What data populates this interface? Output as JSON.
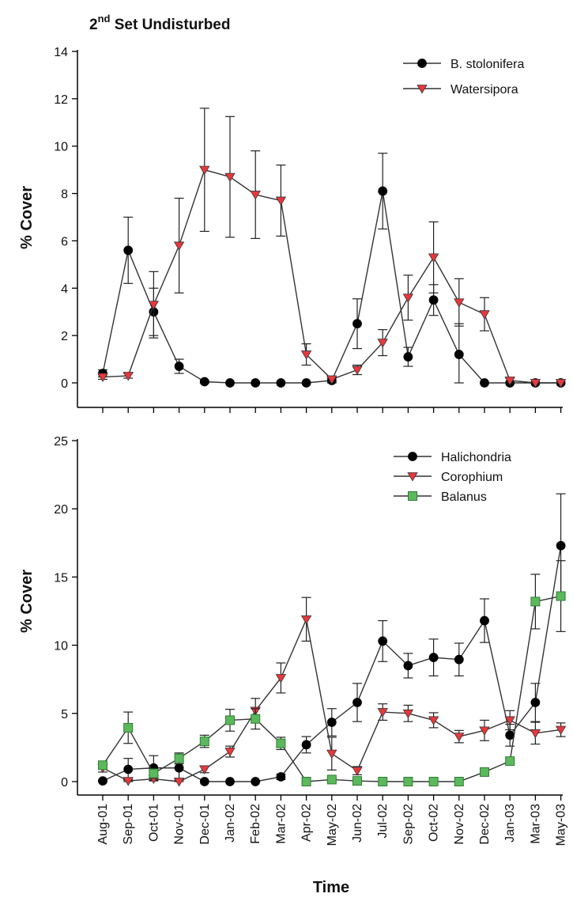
{
  "figure": {
    "title_main": "2",
    "title_sup": "nd",
    "title_rest": " Set Undisturbed",
    "xlabel": "Time"
  },
  "chart_data": [
    {
      "type": "line",
      "categories": [
        "Aug-01",
        "Sep-01",
        "Oct-01",
        "Nov-01",
        "Dec-01",
        "Jan-02",
        "Feb-02",
        "Mar-02",
        "Apr-02",
        "May-02",
        "Jun-02",
        "Jul-02",
        "Sep-02",
        "Oct-02",
        "Nov-02",
        "Dec-02",
        "Jan-03",
        "Mar-03",
        "May-03"
      ],
      "ylabel": "% Cover",
      "ylim": [
        0,
        14
      ],
      "yticks": [
        0,
        2,
        4,
        6,
        8,
        10,
        12,
        14
      ],
      "legend": "top-right",
      "series": [
        {
          "name": "B. stolonifera",
          "marker": "circle",
          "color": "#000000",
          "values": [
            0.4,
            5.6,
            3.0,
            0.7,
            0.05,
            0,
            0,
            0,
            0,
            0.1,
            2.5,
            8.1,
            1.1,
            3.5,
            1.2,
            0,
            0,
            0,
            0
          ],
          "errors": [
            0.15,
            1.4,
            1.0,
            0.3,
            0.05,
            0,
            0,
            0,
            0,
            0.1,
            1.05,
            1.6,
            0.4,
            0.65,
            1.3,
            0,
            0,
            0,
            0
          ]
        },
        {
          "name": "Watersipora",
          "marker": "triangle-down",
          "color": "#e8383d",
          "values": [
            0.25,
            0.3,
            3.3,
            5.8,
            9.0,
            8.7,
            7.95,
            7.7,
            1.2,
            0.15,
            0.55,
            1.7,
            3.6,
            5.3,
            3.4,
            2.9,
            0.1,
            0,
            0
          ],
          "errors": [
            0.1,
            0.1,
            1.4,
            2.0,
            2.6,
            2.55,
            1.85,
            1.5,
            0.45,
            0.1,
            0.2,
            0.55,
            0.95,
            1.5,
            1.0,
            0.7,
            0.1,
            0,
            0
          ]
        }
      ]
    },
    {
      "type": "line",
      "categories": [
        "Aug-01",
        "Sep-01",
        "Oct-01",
        "Nov-01",
        "Dec-01",
        "Jan-02",
        "Feb-02",
        "Mar-02",
        "Apr-02",
        "May-02",
        "Jun-02",
        "Jul-02",
        "Sep-02",
        "Oct-02",
        "Nov-02",
        "Dec-02",
        "Jan-03",
        "Mar-03",
        "May-03"
      ],
      "ylabel": "% Cover",
      "ylim": [
        0,
        25
      ],
      "yticks": [
        0,
        5,
        10,
        15,
        20,
        25
      ],
      "legend": "top-right",
      "series": [
        {
          "name": "Halichondria",
          "marker": "circle",
          "color": "#000000",
          "values": [
            0.05,
            0.9,
            1.0,
            1.0,
            0,
            0,
            0,
            0.35,
            2.7,
            4.35,
            5.8,
            10.3,
            8.5,
            9.1,
            8.95,
            11.8,
            3.4,
            5.8,
            17.3
          ],
          "errors": [
            0.05,
            0.8,
            0.9,
            0.8,
            0,
            0,
            0,
            0.2,
            0.6,
            1.0,
            1.4,
            1.5,
            0.9,
            1.35,
            1.2,
            1.6,
            0.8,
            1.4,
            3.8
          ]
        },
        {
          "name": "Corophium",
          "marker": "triangle-down",
          "color": "#e8383d",
          "values": [
            1.0,
            0.05,
            0.2,
            0,
            0.9,
            2.2,
            5.2,
            7.6,
            11.9,
            2.05,
            0.8,
            5.1,
            5.0,
            4.5,
            3.3,
            3.75,
            4.5,
            3.55,
            3.8
          ],
          "errors": [
            0.3,
            0.1,
            0.15,
            0.1,
            0.25,
            0.4,
            0.9,
            1.1,
            1.6,
            1.2,
            0.3,
            0.6,
            0.6,
            0.55,
            0.45,
            0.75,
            0.7,
            0.8,
            0.5
          ]
        },
        {
          "name": "Balanus",
          "marker": "square",
          "color": "#5cb85c",
          "values": [
            1.2,
            3.95,
            0.6,
            1.7,
            2.95,
            4.5,
            4.6,
            2.8,
            0,
            0.15,
            0.05,
            0,
            0,
            0,
            0,
            0.7,
            1.5,
            13.2,
            13.6
          ],
          "errors": [
            0.25,
            1.15,
            0.35,
            0.4,
            0.45,
            0.8,
            0.75,
            0.45,
            0,
            0.1,
            0.05,
            0,
            0,
            0,
            0,
            0.15,
            0.2,
            2.0,
            2.6
          ]
        }
      ]
    }
  ]
}
